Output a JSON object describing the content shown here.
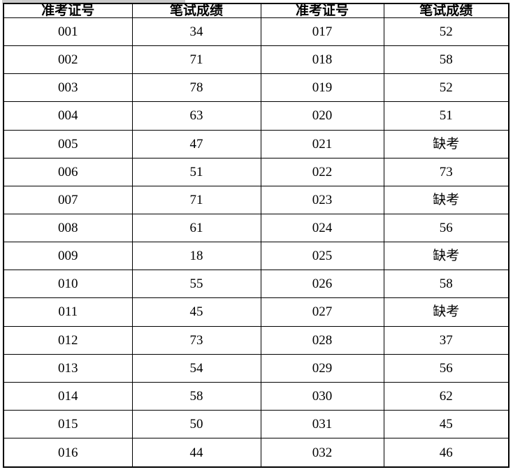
{
  "page": {
    "background_color": "#ffffff",
    "artifact_strip_color": "#c9c9c9"
  },
  "table": {
    "border_color": "#000000",
    "text_color": "#000000",
    "headers": [
      "准考证号",
      "笔试成绩",
      "准考证号",
      "笔试成绩"
    ],
    "absent_label": "缺考",
    "rows": [
      [
        "001",
        "34",
        "017",
        "52"
      ],
      [
        "002",
        "71",
        "018",
        "58"
      ],
      [
        "003",
        "78",
        "019",
        "52"
      ],
      [
        "004",
        "63",
        "020",
        "51"
      ],
      [
        "005",
        "47",
        "021",
        "缺考"
      ],
      [
        "006",
        "51",
        "022",
        "73"
      ],
      [
        "007",
        "71",
        "023",
        "缺考"
      ],
      [
        "008",
        "61",
        "024",
        "56"
      ],
      [
        "009",
        "18",
        "025",
        "缺考"
      ],
      [
        "010",
        "55",
        "026",
        "58"
      ],
      [
        "011",
        "45",
        "027",
        "缺考"
      ],
      [
        "012",
        "73",
        "028",
        "37"
      ],
      [
        "013",
        "54",
        "029",
        "56"
      ],
      [
        "014",
        "58",
        "030",
        "62"
      ],
      [
        "015",
        "50",
        "031",
        "45"
      ],
      [
        "016",
        "44",
        "032",
        "46"
      ]
    ]
  }
}
